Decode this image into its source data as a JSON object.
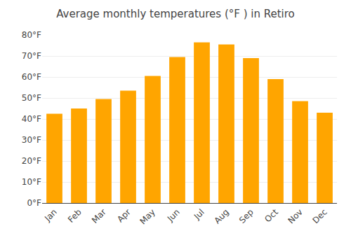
{
  "chart_data": {
    "type": "bar",
    "title": "Average monthly temperatures (°F ) in Retiro",
    "categories": [
      "Jan",
      "Feb",
      "Mar",
      "Apr",
      "May",
      "Jun",
      "Jul",
      "Aug",
      "Sep",
      "Oct",
      "Nov",
      "Dec"
    ],
    "values": [
      42.5,
      45.0,
      49.5,
      53.5,
      60.5,
      69.5,
      76.5,
      75.5,
      69.0,
      59.0,
      48.5,
      43.0
    ],
    "color": "#FFA500",
    "ylim": [
      0,
      80
    ],
    "yticks": [
      {
        "value": 0,
        "label": "0°F"
      },
      {
        "value": 10,
        "label": "10°F"
      },
      {
        "value": 20,
        "label": "20°F"
      },
      {
        "value": 30,
        "label": "30°F"
      },
      {
        "value": 40,
        "label": "40°F"
      },
      {
        "value": 50,
        "label": "50°F"
      },
      {
        "value": 60,
        "label": "60°F"
      },
      {
        "value": 70,
        "label": "70°F"
      },
      {
        "value": 80,
        "label": "80°F"
      }
    ],
    "grid": true
  }
}
